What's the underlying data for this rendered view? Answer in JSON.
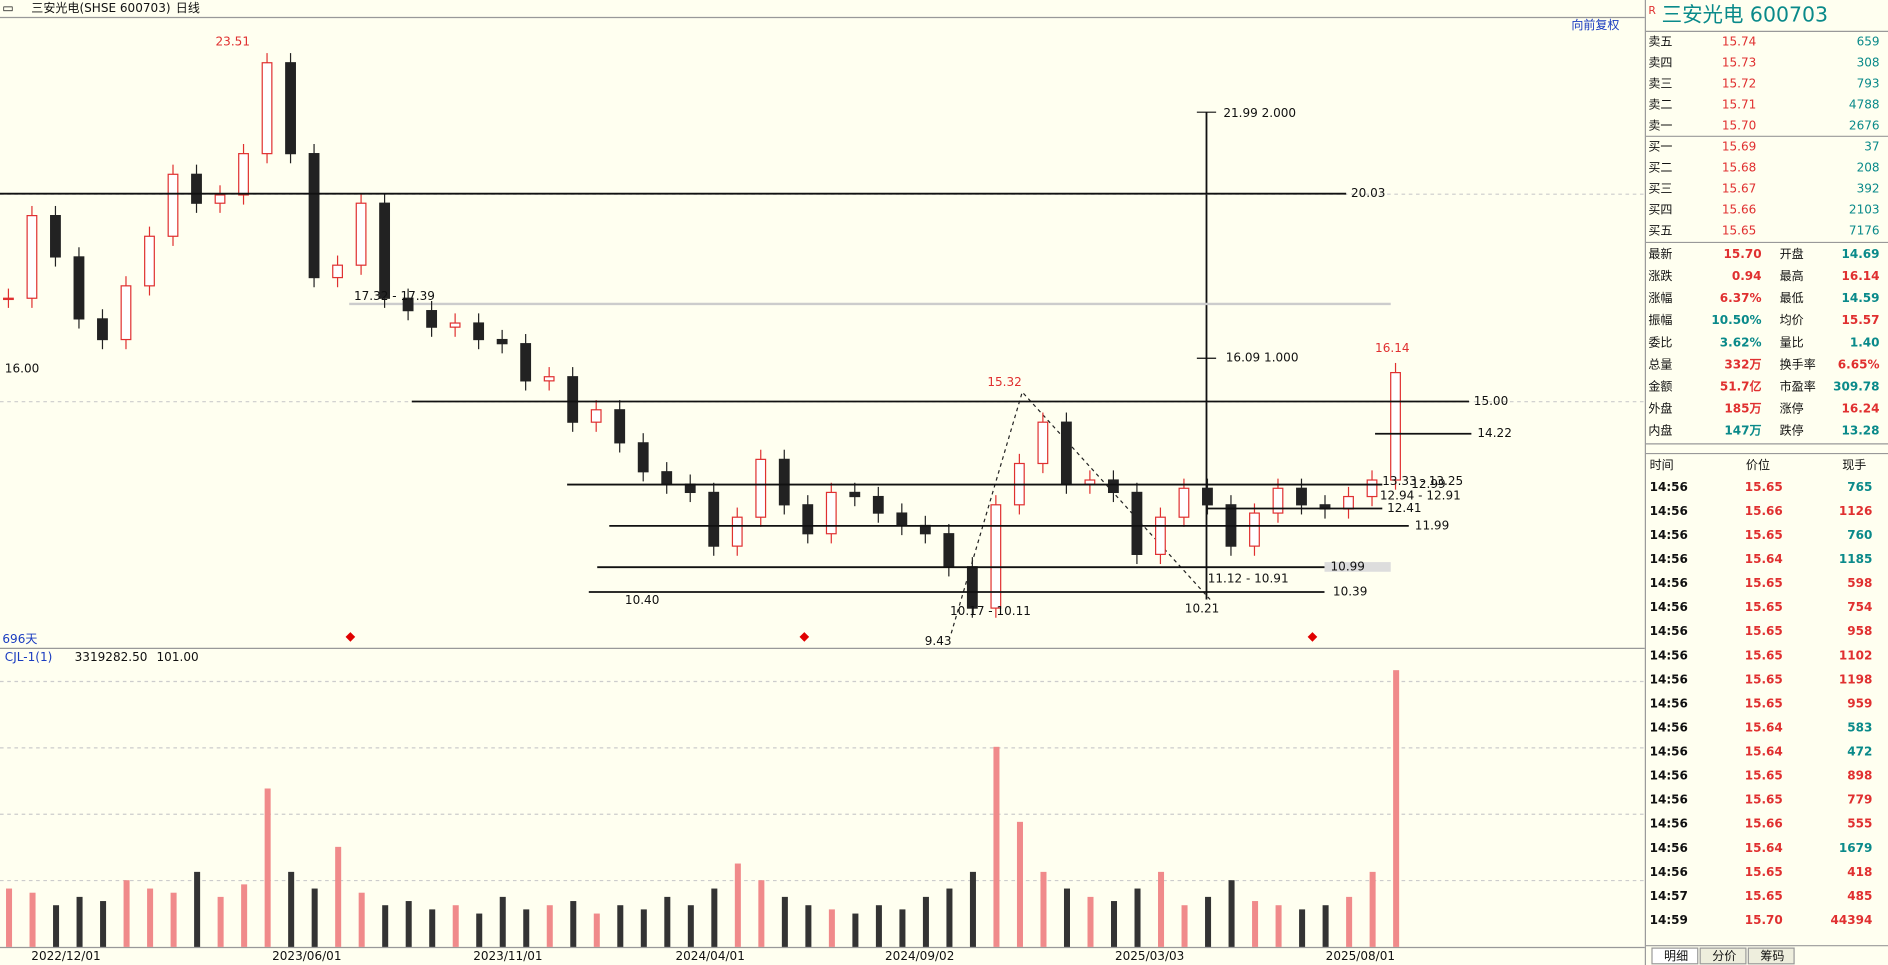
{
  "header": {
    "name": "三安光电(SHSE 600703)",
    "period": "日线",
    "adjust": "向前复权",
    "span": "696天"
  },
  "chart": {
    "price_ylim": [
      9.04,
      24.31
    ],
    "closes": [
      17.5,
      19.5,
      18.5,
      17.0,
      16.5,
      17.8,
      19.0,
      20.5,
      19.8,
      20.0,
      21.0,
      23.2,
      21.0,
      18.0,
      18.3,
      19.8,
      17.5,
      17.2,
      16.8,
      16.9,
      16.5,
      16.4,
      15.5,
      15.6,
      14.5,
      14.8,
      14.0,
      13.3,
      13.0,
      12.8,
      11.5,
      12.2,
      13.6,
      12.5,
      11.8,
      12.8,
      12.7,
      12.3,
      12.0,
      11.8,
      11.0,
      10.0,
      12.5,
      13.5,
      14.5,
      13.0,
      13.1,
      12.8,
      11.3,
      12.2,
      12.9,
      12.5,
      11.5,
      12.3,
      12.9,
      12.5,
      12.4,
      12.7,
      13.1,
      15.7
    ],
    "levels": [
      {
        "value": 20.03,
        "label": "20.03"
      },
      {
        "value": 15,
        "label": "15.00"
      },
      {
        "value": 14.22,
        "label": "14.22"
      },
      {
        "value": 12.99,
        "label": "12.99"
      },
      {
        "value": 12.41,
        "label": "12.41"
      },
      {
        "value": 11.99,
        "label": "11.99"
      },
      {
        "value": 10.99,
        "label": "10.99"
      },
      {
        "value": 10.39,
        "label": "10.39"
      }
    ],
    "annotations": [
      "23.51",
      "16.00",
      "17.32 - 17.39",
      "10.40",
      "15.32",
      "9.43",
      "10.17 - 10.11",
      "21.99 2.000",
      "16.09 1.000",
      "11.12 - 10.91",
      "10.21",
      "16.14",
      "13.33 - 13.25",
      "12.94 - 12.91"
    ],
    "volume_indicator": "CJL-1(1)",
    "volume_last": "3319282.50",
    "volume_ma": "101.00",
    "volume_ylim": [
      0,
      3400000
    ],
    "volumes": [
      700000,
      650000,
      500000,
      600000,
      550000,
      800000,
      700000,
      650000,
      900000,
      600000,
      750000,
      1900000,
      900000,
      700000,
      1200000,
      650000,
      500000,
      550000,
      450000,
      500000,
      400000,
      600000,
      450000,
      500000,
      550000,
      400000,
      500000,
      450000,
      600000,
      500000,
      700000,
      1000000,
      800000,
      600000,
      500000,
      450000,
      400000,
      500000,
      450000,
      600000,
      700000,
      900000,
      2400000,
      1500000,
      900000,
      700000,
      600000,
      550000,
      700000,
      900000,
      500000,
      600000,
      800000,
      550000,
      500000,
      450000,
      500000,
      600000,
      900000,
      3319282.5
    ],
    "dates": [
      "2022/12/01",
      "2023/06/01",
      "2023/11/01",
      "2024/04/01",
      "2024/09/02",
      "2025/03/03",
      "2025/08/01"
    ]
  },
  "quote": {
    "flag": "R",
    "title": "三安光电  600703",
    "book": [
      [
        "卖五",
        "15.74",
        "659"
      ],
      [
        "卖四",
        "15.73",
        "308"
      ],
      [
        "卖三",
        "15.72",
        "793"
      ],
      [
        "卖二",
        "15.71",
        "4788"
      ],
      [
        "卖一",
        "15.70",
        "2676"
      ],
      [
        "买一",
        "15.69",
        "37"
      ],
      [
        "买二",
        "15.68",
        "208"
      ],
      [
        "买三",
        "15.67",
        "392"
      ],
      [
        "买四",
        "15.66",
        "2103"
      ],
      [
        "买五",
        "15.65",
        "7176"
      ]
    ],
    "stats": [
      [
        {
          "k": "最新",
          "v": "15.70",
          "color": "#e03030"
        },
        {
          "k": "开盘",
          "v": "14.69",
          "color": "#0a8a8a"
        }
      ],
      [
        {
          "k": "涨跌",
          "v": "0.94",
          "color": "#e03030"
        },
        {
          "k": "最高",
          "v": "16.14",
          "color": "#e03030"
        }
      ],
      [
        {
          "k": "涨幅",
          "v": "6.37%",
          "color": "#e03030"
        },
        {
          "k": "最低",
          "v": "14.59",
          "color": "#0a8a8a"
        }
      ],
      [
        {
          "k": "振幅",
          "v": "10.50%",
          "color": "#0a8a8a"
        },
        {
          "k": "均价",
          "v": "15.57",
          "color": "#e03030"
        }
      ],
      [
        {
          "k": "委比",
          "v": "3.62%",
          "color": "#0a8a8a"
        },
        {
          "k": "量比",
          "v": "1.40",
          "color": "#0a8a8a"
        }
      ],
      [
        {
          "k": "总量",
          "v": "332万",
          "color": "#e03030"
        },
        {
          "k": "换手率",
          "v": "6.65%",
          "color": "#e03030"
        }
      ],
      [
        {
          "k": "金额",
          "v": "51.7亿",
          "color": "#e03030"
        },
        {
          "k": "市盈率",
          "v": "309.78",
          "color": "#0a8a8a"
        }
      ],
      [
        {
          "k": "外盘",
          "v": "185万",
          "color": "#e03030"
        },
        {
          "k": "涨停",
          "v": "16.24",
          "color": "#e03030"
        }
      ],
      [
        {
          "k": "内盘",
          "v": "147万",
          "color": "#0a8a8a"
        },
        {
          "k": "跌停",
          "v": "13.28",
          "color": "#0a8a8a"
        }
      ]
    ],
    "ticks_header": [
      "时间",
      "价位",
      "现手"
    ],
    "ticks": [
      [
        "14:56",
        "15.65",
        "765",
        "#0a8a8a"
      ],
      [
        "14:56",
        "15.66",
        "1126",
        "#e03030"
      ],
      [
        "14:56",
        "15.65",
        "760",
        "#0a8a8a"
      ],
      [
        "14:56",
        "15.64",
        "1185",
        "#0a8a8a"
      ],
      [
        "14:56",
        "15.65",
        "598",
        "#e03030"
      ],
      [
        "14:56",
        "15.65",
        "754",
        "#e03030"
      ],
      [
        "14:56",
        "15.65",
        "958",
        "#e03030"
      ],
      [
        "14:56",
        "15.65",
        "1102",
        "#e03030"
      ],
      [
        "14:56",
        "15.65",
        "1198",
        "#e03030"
      ],
      [
        "14:56",
        "15.65",
        "959",
        "#e03030"
      ],
      [
        "14:56",
        "15.64",
        "583",
        "#0a8a8a"
      ],
      [
        "14:56",
        "15.64",
        "472",
        "#0a8a8a"
      ],
      [
        "14:56",
        "15.65",
        "898",
        "#e03030"
      ],
      [
        "14:56",
        "15.65",
        "779",
        "#e03030"
      ],
      [
        "14:56",
        "15.66",
        "555",
        "#e03030"
      ],
      [
        "14:56",
        "15.64",
        "1679",
        "#0a8a8a"
      ],
      [
        "14:56",
        "15.65",
        "418",
        "#e03030"
      ],
      [
        "14:57",
        "15.65",
        "485",
        "#e03030"
      ],
      [
        "14:59",
        "15.70",
        "44394",
        "#e03030"
      ]
    ],
    "tabs": [
      "明细",
      "分价",
      "筹码"
    ]
  }
}
